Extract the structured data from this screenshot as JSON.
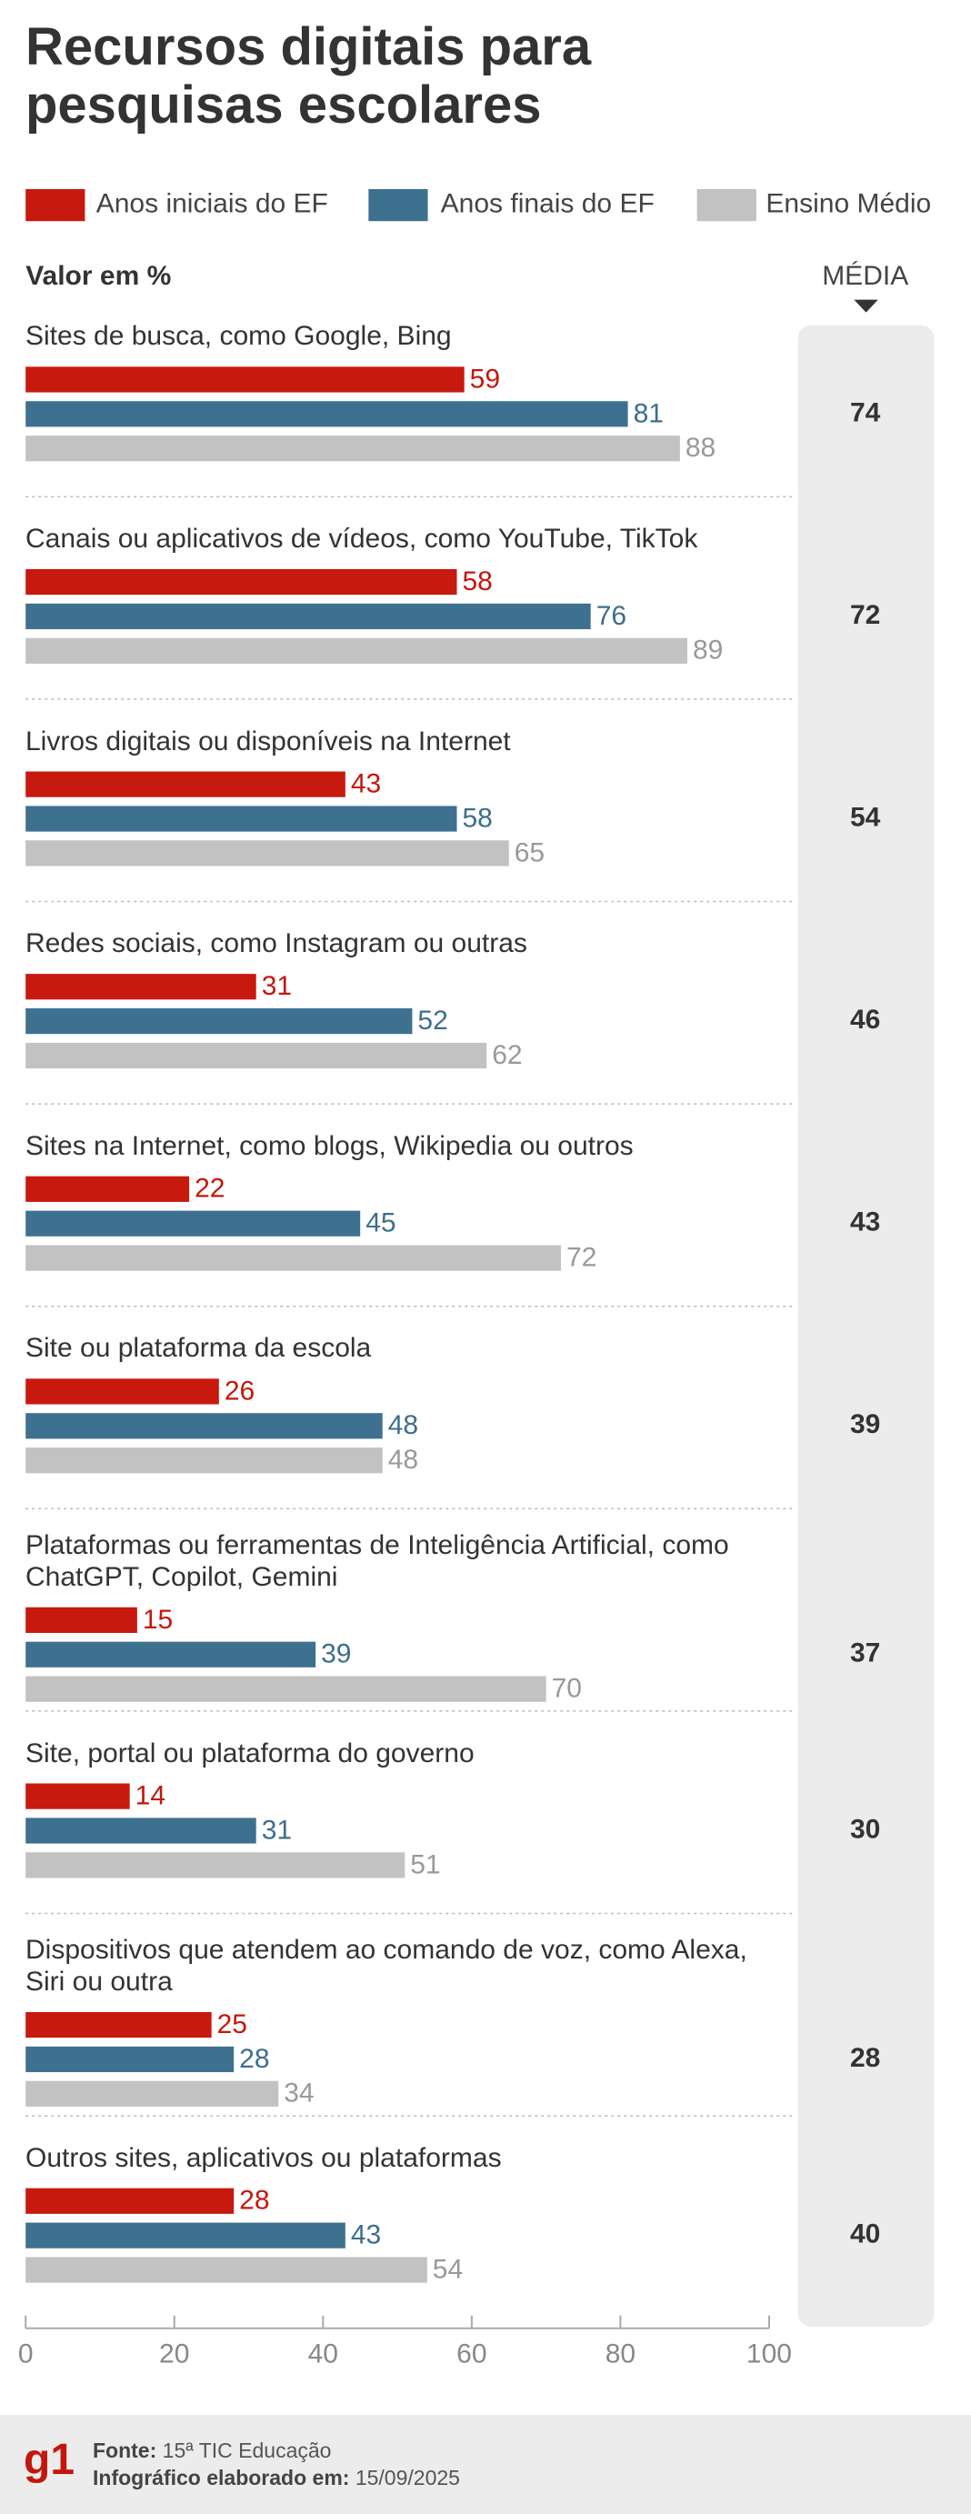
{
  "chart_data": {
    "type": "bar",
    "orientation": "horizontal",
    "title": "Recursos digitais para pesquisas escolares",
    "value_axis_label": "Valor em %",
    "categories": [
      "Sites de busca, como Google, Bing",
      "Canais ou aplicativos de vídeos, como YouTube, TikTok",
      "Livros digitais ou disponíveis na Internet",
      "Redes sociais, como Instagram ou outras",
      "Sites na Internet, como blogs, Wikipedia ou outros",
      "Site ou plataforma da escola",
      "Plataformas ou ferramentas de Inteligência Artificial, como ChatGPT, Copilot, Gemini",
      "Site, portal ou plataforma do governo",
      "Dispositivos que atendem ao comando de voz, como Alexa, Siri ou outra",
      "Outros sites, aplicativos ou plataformas"
    ],
    "series": [
      {
        "name": "Anos iniciais do EF",
        "color": "#c8190f",
        "values": [
          59,
          58,
          43,
          31,
          22,
          26,
          15,
          14,
          25,
          28
        ]
      },
      {
        "name": "Anos finais do EF",
        "color": "#3e7190",
        "values": [
          81,
          76,
          58,
          52,
          45,
          48,
          39,
          31,
          28,
          43
        ]
      },
      {
        "name": "Ensino Médio",
        "color": "#c2c2c2",
        "values": [
          88,
          89,
          65,
          62,
          72,
          48,
          70,
          51,
          34,
          54
        ]
      }
    ],
    "averages_label": "MÉDIA",
    "averages": [
      74,
      72,
      54,
      46,
      43,
      39,
      37,
      30,
      28,
      40
    ],
    "xlim": [
      0,
      100
    ],
    "xticks": [
      0,
      20,
      40,
      60,
      80,
      100
    ]
  },
  "footer": {
    "logo": "g1",
    "source_label": "Fonte:",
    "source": "15ª TIC Educação",
    "date_label": "Infográfico elaborado em:",
    "date": "15/09/2025"
  }
}
